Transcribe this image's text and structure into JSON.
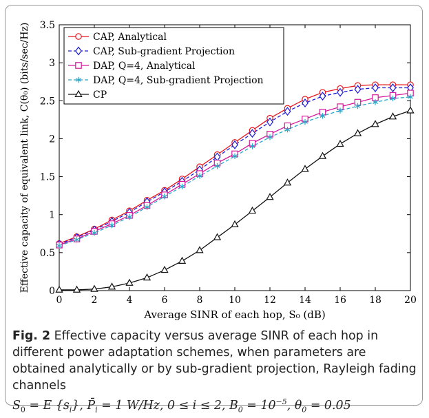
{
  "chart_data": {
    "type": "line",
    "xlabel": "Average SINR of each hop, S₀ (dB)",
    "ylabel": "Effective capacity of equivalent link, C(θ₀) (bits/sec/Hz)",
    "xlim": [
      0,
      20
    ],
    "ylim": [
      0,
      3.5
    ],
    "x_ticks": [
      "0",
      "2",
      "4",
      "6",
      "8",
      "10",
      "12",
      "14",
      "16",
      "18",
      "20"
    ],
    "y_ticks": [
      "0",
      "0.5",
      "1",
      "1.5",
      "2",
      "2.5",
      "3",
      "3.5"
    ],
    "grid": false,
    "legend_position": "top-left",
    "x": [
      0,
      1,
      2,
      3,
      4,
      5,
      6,
      7,
      8,
      9,
      10,
      11,
      12,
      13,
      14,
      15,
      16,
      17,
      18,
      19,
      20
    ],
    "series": [
      {
        "name": "CAP, Analytical",
        "color": "#e8141c",
        "dash": "solid",
        "marker": "circle",
        "values": [
          0.62,
          0.71,
          0.81,
          0.93,
          1.05,
          1.19,
          1.32,
          1.47,
          1.63,
          1.79,
          1.95,
          2.11,
          2.27,
          2.4,
          2.52,
          2.61,
          2.66,
          2.7,
          2.71,
          2.71,
          2.71
        ]
      },
      {
        "name": "CAP, Sub-gradient Projection",
        "color": "#1a1adb",
        "dash": "dashed",
        "marker": "diamond",
        "values": [
          0.61,
          0.7,
          0.8,
          0.91,
          1.03,
          1.17,
          1.3,
          1.44,
          1.59,
          1.76,
          1.92,
          2.07,
          2.22,
          2.36,
          2.47,
          2.56,
          2.61,
          2.65,
          2.67,
          2.67,
          2.67
        ]
      },
      {
        "name": "DAP, Q=4, Analytical",
        "color": "#d4189a",
        "dash": "solid",
        "marker": "square",
        "values": [
          0.6,
          0.68,
          0.78,
          0.88,
          0.99,
          1.12,
          1.26,
          1.4,
          1.54,
          1.68,
          1.8,
          1.94,
          2.06,
          2.17,
          2.26,
          2.35,
          2.42,
          2.48,
          2.54,
          2.57,
          2.6
        ]
      },
      {
        "name": "DAP, Q=4, Sub-gradient Projection",
        "color": "#2aa6c8",
        "dash": "dashed",
        "marker": "asterisk",
        "values": [
          0.59,
          0.67,
          0.76,
          0.86,
          0.97,
          1.1,
          1.24,
          1.37,
          1.51,
          1.64,
          1.77,
          1.9,
          2.02,
          2.12,
          2.22,
          2.3,
          2.37,
          2.43,
          2.48,
          2.53,
          2.55
        ]
      },
      {
        "name": "CP",
        "color": "#111111",
        "dash": "solid",
        "marker": "triangle",
        "values": [
          0.01,
          0.01,
          0.02,
          0.05,
          0.1,
          0.17,
          0.27,
          0.39,
          0.53,
          0.7,
          0.87,
          1.05,
          1.23,
          1.42,
          1.6,
          1.77,
          1.93,
          2.07,
          2.19,
          2.29,
          2.37
        ]
      }
    ]
  },
  "caption": {
    "label": "Fig. 2",
    "text": "Effective capacity versus average SINR of each hop in different power adaptation schemes, when parameters are obtained analytically or by sub-gradient projection, Rayleigh fading channels",
    "math_s0": "S",
    "math_s0_sub": "0",
    "math_eq": " = E {s",
    "math_si_sub": "i",
    "math_close": "}, ",
    "math_p": "P̄",
    "math_p_sub": "i",
    "math_p_val": " = 1 W/Hz, 0 ≤ i ≤ 2, B",
    "math_b_sub": "0",
    "math_b_val": " = 10",
    "math_b_exp": "−5",
    "math_theta": ", θ",
    "math_theta_sub": "0",
    "math_theta_val": " = 0.05"
  }
}
